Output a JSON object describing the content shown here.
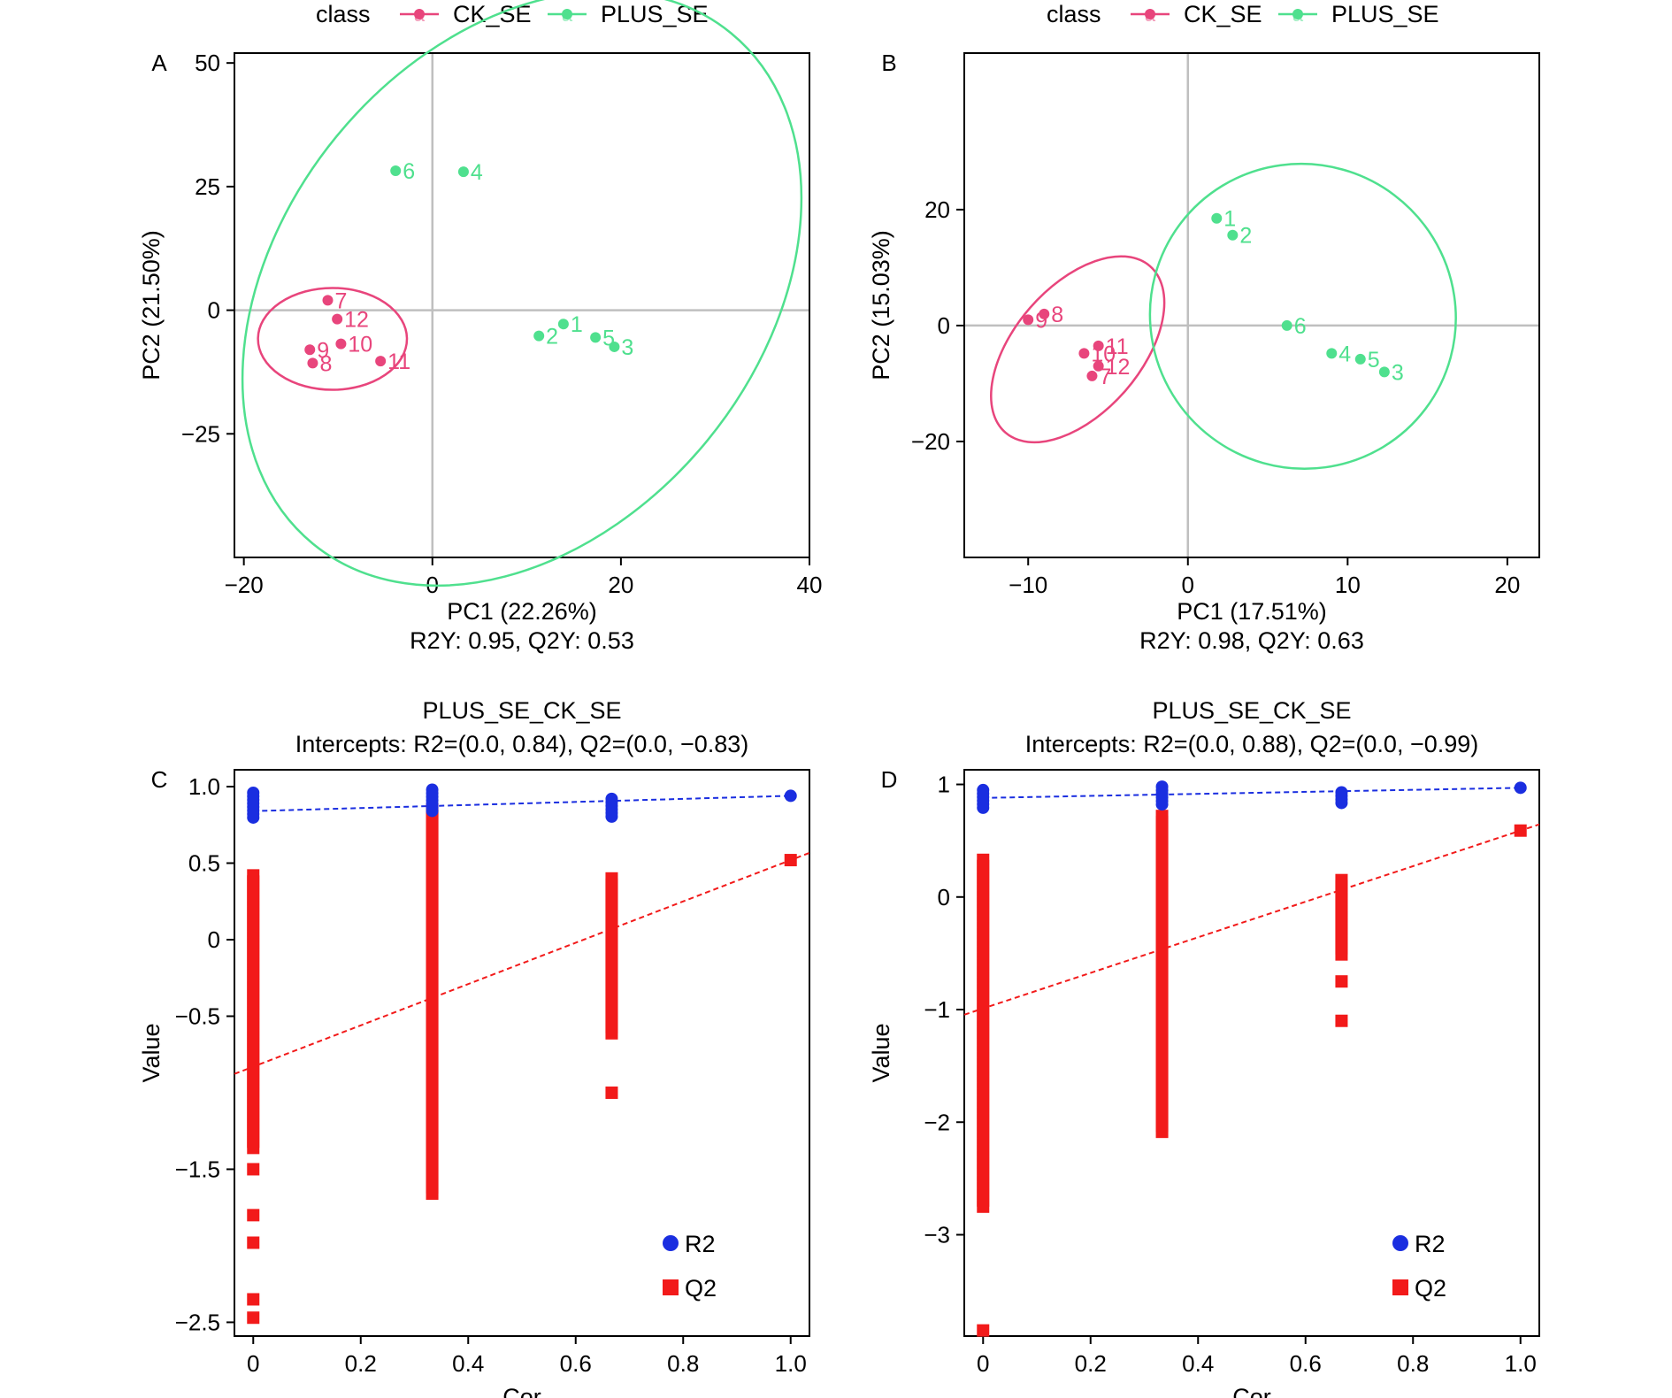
{
  "colors": {
    "ck": "#E8457C",
    "plus": "#4FE08E",
    "r2": "#1A2EE0",
    "q2": "#F21A1A",
    "refline": "#BFBFBF"
  },
  "legend": {
    "title": "class",
    "glyph": "a",
    "entries": [
      {
        "key": "ck",
        "label": "CK_SE"
      },
      {
        "key": "plus",
        "label": "PLUS_SE"
      }
    ]
  },
  "chart_data": [
    {
      "id": "A",
      "type": "scatter",
      "panel_label": "A",
      "xlabel": "PC1 (22.26%)",
      "ylabel": "PC2 (21.50%)",
      "subtitle": "R2Y: 0.95, Q2Y: 0.53",
      "xlim": [
        -21,
        40
      ],
      "ylim": [
        -50,
        52
      ],
      "xticks": [
        -20,
        0,
        20,
        40
      ],
      "xtick_labels": [
        "−20",
        "0",
        "20",
        "40"
      ],
      "yticks": [
        -25,
        0,
        25,
        50
      ],
      "ytick_labels": [
        "−25",
        "0",
        "25",
        "50"
      ],
      "series": [
        {
          "name": "CK_SE",
          "color": "ck",
          "points": [
            {
              "label": "7",
              "x": -11.1,
              "y": 2.0
            },
            {
              "label": "12",
              "x": -10.1,
              "y": -1.8
            },
            {
              "label": "9",
              "x": -13.0,
              "y": -8.0
            },
            {
              "label": "10",
              "x": -9.7,
              "y": -6.8
            },
            {
              "label": "8",
              "x": -12.7,
              "y": -10.7
            },
            {
              "label": "11",
              "x": -5.5,
              "y": -10.3
            }
          ],
          "ellipse": {
            "cx": -10.6,
            "cy": -5.8,
            "rx": 7.9,
            "ry": 20.6,
            "angle": 0
          }
        },
        {
          "name": "PLUS_SE",
          "color": "plus",
          "points": [
            {
              "label": "6",
              "x": -3.9,
              "y": 28.2
            },
            {
              "label": "4",
              "x": 3.3,
              "y": 28.0
            },
            {
              "label": "2",
              "x": 11.3,
              "y": -5.2
            },
            {
              "label": "1",
              "x": 13.9,
              "y": -2.8
            },
            {
              "label": "5",
              "x": 17.3,
              "y": -5.5
            },
            {
              "label": "3",
              "x": 19.3,
              "y": -7.4
            }
          ],
          "ellipse": {
            "cx": 9.5,
            "cy": 4.4,
            "rx": 35.0,
            "ry": 97.0,
            "angle": -50.7
          }
        }
      ]
    },
    {
      "id": "B",
      "type": "scatter",
      "panel_label": "B",
      "xlabel": "PC1 (17.51%)",
      "ylabel": "PC2 (15.03%)",
      "subtitle": "R2Y: 0.98, Q2Y: 0.63",
      "xlim": [
        -14,
        22
      ],
      "ylim": [
        -40,
        47
      ],
      "xticks": [
        -10,
        0,
        10,
        20
      ],
      "xtick_labels": [
        "−10",
        "0",
        "10",
        "20"
      ],
      "yticks": [
        -20,
        0,
        20
      ],
      "ytick_labels": [
        "−20",
        "0",
        "20"
      ],
      "series": [
        {
          "name": "CK_SE",
          "color": "ck",
          "points": [
            {
              "label": "9",
              "x": -10.0,
              "y": 1.0
            },
            {
              "label": "8",
              "x": -9.0,
              "y": 2.0
            },
            {
              "label": "11",
              "x": -5.6,
              "y": -3.5
            },
            {
              "label": "10",
              "x": -6.5,
              "y": -4.8
            },
            {
              "label": "12",
              "x": -5.6,
              "y": -7.0
            },
            {
              "label": "7",
              "x": -6.0,
              "y": -8.7
            }
          ],
          "ellipse": {
            "cx": -6.9,
            "cy": -4.1,
            "rx": 6.9,
            "ry": 21.8,
            "angle": -49.0
          }
        },
        {
          "name": "PLUS_SE",
          "color": "plus",
          "points": [
            {
              "label": "1",
              "x": 1.8,
              "y": 18.5
            },
            {
              "label": "2",
              "x": 2.8,
              "y": 15.6
            },
            {
              "label": "6",
              "x": 6.2,
              "y": 0.0
            },
            {
              "label": "4",
              "x": 9.0,
              "y": -4.8
            },
            {
              "label": "5",
              "x": 10.8,
              "y": -5.8
            },
            {
              "label": "3",
              "x": 12.3,
              "y": -8.0
            }
          ],
          "ellipse": {
            "cx": 7.2,
            "cy": 1.6,
            "rx": 9.5,
            "ry": 53.0,
            "angle": -53.0
          }
        }
      ]
    },
    {
      "id": "C",
      "type": "scatter",
      "panel_label": "C",
      "title": "PLUS_SE_CK_SE",
      "subtitle": "Intercepts: R2=(0.0, 0.84), Q2=(0.0, −0.83)",
      "xlabel": "Cor",
      "ylabel": "Value",
      "xlim": [
        -0.035,
        1.035
      ],
      "ylim": [
        -2.59,
        1.11
      ],
      "xticks": [
        0,
        0.2,
        0.4,
        0.6,
        0.8,
        1.0
      ],
      "xtick_labels": [
        "0",
        "0.2",
        "0.4",
        "0.6",
        "0.8",
        "1.0"
      ],
      "yticks": [
        -2.5,
        -1.5,
        -0.5,
        0,
        0.5,
        1.0
      ],
      "ytick_labels": [
        "−2.5",
        "−1.5",
        "−0.5",
        "0",
        "0.5",
        "1.0"
      ],
      "r2_intercept": 0.84,
      "r2_actual": 0.94,
      "q2_intercept": -0.83,
      "q2_actual": 0.52,
      "series": [
        {
          "name": "R2",
          "columns": [
            {
              "x": 0,
              "min": 0.78,
              "max": 0.96
            },
            {
              "x": 0.333,
              "min": 0.82,
              "max": 0.98
            },
            {
              "x": 0.667,
              "min": 0.8,
              "max": 0.92
            }
          ]
        },
        {
          "name": "Q2",
          "columns": [
            {
              "x": 0,
              "min": -1.4,
              "max": 0.42,
              "extra": [
                -1.5,
                -1.8,
                -1.98,
                -2.35,
                -2.47
              ]
            },
            {
              "x": 0.333,
              "min": -1.68,
              "max": 0.85
            },
            {
              "x": 0.667,
              "min": -0.63,
              "max": 0.4,
              "extra": [
                -1.0
              ]
            }
          ]
        }
      ],
      "legend": [
        {
          "label": "R2",
          "color": "r2"
        },
        {
          "label": "Q2",
          "color": "q2"
        }
      ]
    },
    {
      "id": "D",
      "type": "scatter",
      "panel_label": "D",
      "title": "PLUS_SE_CK_SE",
      "subtitle": "Intercepts: R2=(0.0, 0.88), Q2=(0.0, −0.99)",
      "xlabel": "Cor",
      "ylabel": "Value",
      "xlim": [
        -0.035,
        1.035
      ],
      "ylim": [
        -3.9,
        1.13
      ],
      "xticks": [
        0,
        0.2,
        0.4,
        0.6,
        0.8,
        1.0
      ],
      "xtick_labels": [
        "0",
        "0.2",
        "0.4",
        "0.6",
        "0.8",
        "1.0"
      ],
      "yticks": [
        -3,
        -2,
        -1,
        0,
        1
      ],
      "ytick_labels": [
        "−3",
        "−2",
        "−1",
        "0",
        "1"
      ],
      "r2_intercept": 0.88,
      "r2_actual": 0.97,
      "q2_intercept": -0.99,
      "q2_actual": 0.59,
      "series": [
        {
          "name": "R2",
          "columns": [
            {
              "x": 0,
              "min": 0.78,
              "max": 0.95
            },
            {
              "x": 0.333,
              "min": 0.82,
              "max": 0.98
            },
            {
              "x": 0.667,
              "min": 0.82,
              "max": 0.93
            }
          ]
        },
        {
          "name": "Q2",
          "columns": [
            {
              "x": 0,
              "min": -2.8,
              "max": 0.33,
              "extra": [
                -3.85
              ]
            },
            {
              "x": 0.333,
              "min": -2.12,
              "max": 0.72
            },
            {
              "x": 0.667,
              "min": -0.55,
              "max": 0.15,
              "extra": [
                -0.75,
                -1.1
              ]
            }
          ]
        }
      ],
      "legend": [
        {
          "label": "R2",
          "color": "r2"
        },
        {
          "label": "Q2",
          "color": "q2"
        }
      ]
    }
  ]
}
